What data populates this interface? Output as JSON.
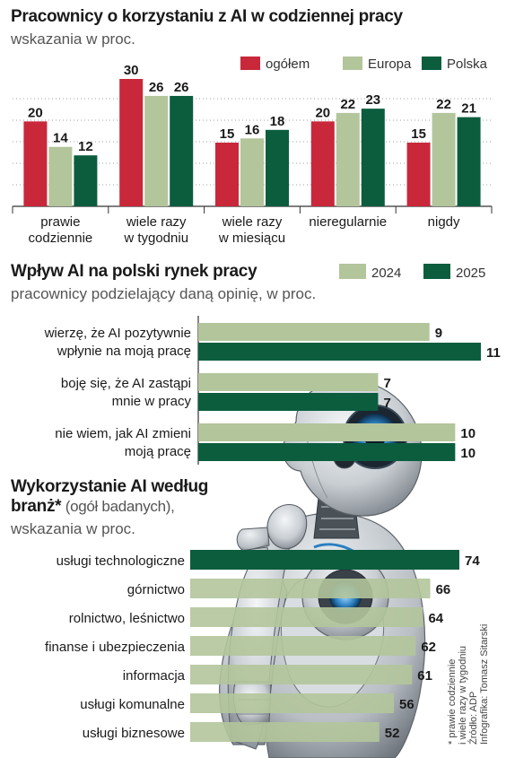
{
  "colors": {
    "ogolem": "#c8283a",
    "europa": "#b3c59b",
    "polska": "#0b5d3e",
    "y2024": "#b3c59b",
    "y2025": "#0b5d3e",
    "industry": "#b3c59b",
    "industry_top": "#0b5d3e"
  },
  "section1": {
    "title": "Pracownicy o korzystaniu z AI w codziennej pracy",
    "subtitle": "wskazania w proc."
  },
  "section2": {
    "title": "Wpływ AI na polski rynek pracy",
    "subtitle": "pracownicy podzielający daną opinię, w proc."
  },
  "section3": {
    "title_bold": "Wykorzystanie AI według branż*",
    "title_normal": " (ogół badanych),",
    "subtitle": "wskazania w proc."
  },
  "footnote": {
    "line1": "* prawie codziennie",
    "line2": "i wiele razy w tygodniu",
    "line3": "Źródło: ADP",
    "line4": "Infografika: Tomasz Sitarski"
  },
  "chart_data": [
    {
      "type": "bar",
      "categories": [
        [
          "prawie",
          "codziennie"
        ],
        [
          "wiele razy",
          "w tygodniu"
        ],
        [
          "wiele razy",
          "w miesiącu"
        ],
        [
          "nieregularnie"
        ],
        [
          "nigdy"
        ]
      ],
      "series": [
        {
          "name": "ogółem",
          "values": [
            20,
            30,
            15,
            20,
            15
          ]
        },
        {
          "name": "Europa",
          "values": [
            14,
            26,
            16,
            22,
            22
          ]
        },
        {
          "name": "Polska",
          "values": [
            12,
            26,
            18,
            23,
            21
          ]
        }
      ],
      "ylim": [
        0,
        30
      ],
      "grid": true,
      "legend": "top-right"
    },
    {
      "type": "bar",
      "orientation": "horizontal",
      "categories": [
        [
          "wierzę, że AI pozytywnie",
          "wpłynie na moją pracę"
        ],
        [
          "boję się, że AI zastąpi",
          "mnie w pracy"
        ],
        [
          "nie wiem, jak AI zmieni",
          "moją pracę"
        ]
      ],
      "series": [
        {
          "name": "2024",
          "values": [
            9,
            7,
            10
          ]
        },
        {
          "name": "2025",
          "values": [
            11,
            7,
            10
          ]
        }
      ],
      "xlim": [
        0,
        11
      ],
      "legend": "top-right"
    },
    {
      "type": "bar",
      "orientation": "horizontal",
      "categories": [
        "usługi technologiczne",
        "górnictwo",
        "rolnictwo, leśnictwo",
        "finanse i ubezpieczenia",
        "informacja",
        "usługi komunalne",
        "usługi biznesowe"
      ],
      "values": [
        74,
        66,
        64,
        62,
        61,
        56,
        52
      ],
      "xlim": [
        0,
        74
      ]
    }
  ]
}
